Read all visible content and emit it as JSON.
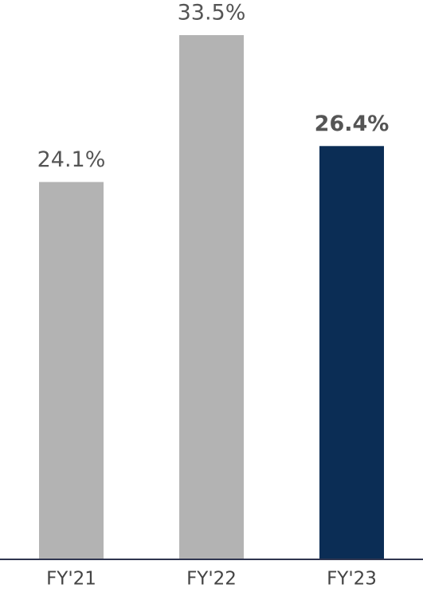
{
  "chart_data": {
    "type": "bar",
    "categories": [
      "FY'21",
      "FY'22",
      "FY'23"
    ],
    "values": [
      24.1,
      33.5,
      26.4
    ],
    "value_labels": [
      "24.1%",
      "33.5%",
      "26.4%"
    ],
    "colors": [
      "#b3b3b3",
      "#b3b3b3",
      "#0b2d55"
    ],
    "highlight_index": 2
  }
}
